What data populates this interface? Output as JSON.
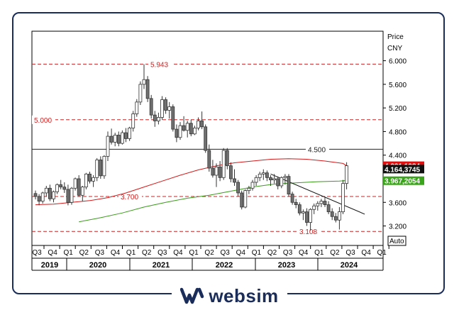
{
  "chart_data": {
    "type": "candlestick",
    "axis": {
      "title_line1": "Price",
      "title_line2": "CNY",
      "ticks": [
        "6.000",
        "5.600",
        "5.200",
        "4.800",
        "4.400",
        "4.000",
        "3.600",
        "3.200"
      ],
      "tick_values": [
        6.0,
        5.6,
        5.2,
        4.8,
        4.4,
        4.0,
        3.6,
        3.2
      ],
      "ylim": [
        2.87,
        6.5
      ],
      "scale_mode_label": "Auto"
    },
    "x_quarters": [
      "Q3",
      "Q4",
      "Q1",
      "Q2",
      "Q3",
      "Q4",
      "Q1",
      "Q2",
      "Q3",
      "Q4",
      "Q1",
      "Q2",
      "Q3",
      "Q4",
      "Q1",
      "Q2",
      "Q3",
      "Q4",
      "Q1",
      "Q2",
      "Q3",
      "Q4",
      "Q1"
    ],
    "x_years": [
      "2019",
      "2020",
      "2021",
      "2022",
      "2023",
      "2024"
    ],
    "levels": [
      {
        "value": 5.943,
        "label": "5.943",
        "style": "dashed",
        "color": "#d42020"
      },
      {
        "value": 5.0,
        "label": "5.000",
        "style": "dashed",
        "color": "#d42020"
      },
      {
        "value": 4.5,
        "label": "4.500",
        "style": "solid",
        "color": "#222222"
      },
      {
        "value": 3.7,
        "label": "3.700",
        "style": "dashed",
        "color": "#d42020"
      },
      {
        "value": 3.108,
        "label": "3.108",
        "style": "dashed",
        "color": "#d42020"
      }
    ],
    "value_tags": [
      {
        "label": "4.221,1984",
        "value": 4.221,
        "bg": "#e01010",
        "fg": "#ffffff"
      },
      {
        "label": "4.164,3745",
        "value": 4.164,
        "bg": "#111111",
        "fg": "#ffffff"
      },
      {
        "label": "3.967,2054",
        "value": 3.967,
        "bg": "#3aa51a",
        "fg": "#ffffff"
      }
    ],
    "candles": [
      [
        3.75,
        3.8,
        3.65,
        3.7
      ],
      [
        3.7,
        3.74,
        3.55,
        3.62
      ],
      [
        3.62,
        3.78,
        3.58,
        3.76
      ],
      [
        3.76,
        3.88,
        3.7,
        3.84
      ],
      [
        3.84,
        3.9,
        3.62,
        3.66
      ],
      [
        3.66,
        3.8,
        3.6,
        3.78
      ],
      [
        3.78,
        3.92,
        3.74,
        3.9
      ],
      [
        3.9,
        3.98,
        3.82,
        3.86
      ],
      [
        3.86,
        3.94,
        3.76,
        3.82
      ],
      [
        3.82,
        3.9,
        3.55,
        3.6
      ],
      [
        3.6,
        3.86,
        3.56,
        3.84
      ],
      [
        3.84,
        4.02,
        3.8,
        4.0
      ],
      [
        4.0,
        4.06,
        3.7,
        3.72
      ],
      [
        3.72,
        3.88,
        3.62,
        3.86
      ],
      [
        3.86,
        4.1,
        3.82,
        4.08
      ],
      [
        4.08,
        4.12,
        3.92,
        3.96
      ],
      [
        3.96,
        4.06,
        3.86,
        4.02
      ],
      [
        4.02,
        4.35,
        3.96,
        4.32
      ],
      [
        4.32,
        4.38,
        4.0,
        4.05
      ],
      [
        4.05,
        4.4,
        4.0,
        4.38
      ],
      [
        4.38,
        4.8,
        4.3,
        4.72
      ],
      [
        4.72,
        4.85,
        4.58,
        4.62
      ],
      [
        4.62,
        4.78,
        4.55,
        4.74
      ],
      [
        4.74,
        4.8,
        4.55,
        4.6
      ],
      [
        4.6,
        4.82,
        4.58,
        4.78
      ],
      [
        4.78,
        4.86,
        4.62,
        4.68
      ],
      [
        4.68,
        4.88,
        4.64,
        4.86
      ],
      [
        4.86,
        5.15,
        4.8,
        5.1
      ],
      [
        5.1,
        5.35,
        5.05,
        5.3
      ],
      [
        5.3,
        5.65,
        5.25,
        5.6
      ],
      [
        5.6,
        5.94,
        5.52,
        5.68
      ],
      [
        5.68,
        5.74,
        5.3,
        5.36
      ],
      [
        5.36,
        5.42,
        5.02,
        5.08
      ],
      [
        5.08,
        5.15,
        4.88,
        4.98
      ],
      [
        4.98,
        5.12,
        4.92,
        5.04
      ],
      [
        5.04,
        5.4,
        5.0,
        5.34
      ],
      [
        5.34,
        5.38,
        5.1,
        5.16
      ],
      [
        5.16,
        5.3,
        5.02,
        5.22
      ],
      [
        5.22,
        5.26,
        4.8,
        4.84
      ],
      [
        4.84,
        4.92,
        4.62,
        4.7
      ],
      [
        4.7,
        4.96,
        4.66,
        4.9
      ],
      [
        4.9,
        5.06,
        4.8,
        4.82
      ],
      [
        4.82,
        4.98,
        4.7,
        4.94
      ],
      [
        4.94,
        5.0,
        4.72,
        4.76
      ],
      [
        4.76,
        4.9,
        4.74,
        4.86
      ],
      [
        4.86,
        5.04,
        4.82,
        4.98
      ],
      [
        4.98,
        5.14,
        4.84,
        4.88
      ],
      [
        4.88,
        4.92,
        4.44,
        4.48
      ],
      [
        4.48,
        4.58,
        4.12,
        4.18
      ],
      [
        4.18,
        4.32,
        4.02,
        4.06
      ],
      [
        4.06,
        4.26,
        3.86,
        4.2
      ],
      [
        4.2,
        4.3,
        3.96,
        4.02
      ],
      [
        4.02,
        4.52,
        3.98,
        4.48
      ],
      [
        4.48,
        4.52,
        4.16,
        4.22
      ],
      [
        4.22,
        4.28,
        3.94,
        4.0
      ],
      [
        4.0,
        4.16,
        3.88,
        3.94
      ],
      [
        3.94,
        3.98,
        3.7,
        3.76
      ],
      [
        3.76,
        3.8,
        3.48,
        3.52
      ],
      [
        3.52,
        3.82,
        3.5,
        3.8
      ],
      [
        3.8,
        3.88,
        3.74,
        3.84
      ],
      [
        3.84,
        3.98,
        3.8,
        3.94
      ],
      [
        3.94,
        4.06,
        3.88,
        4.02
      ],
      [
        4.02,
        4.12,
        3.96,
        4.08
      ],
      [
        4.08,
        4.16,
        3.98,
        4.1
      ],
      [
        4.1,
        4.14,
        3.96,
        4.02
      ],
      [
        4.02,
        4.06,
        3.88,
        3.98
      ],
      [
        3.98,
        4.08,
        3.92,
        4.0
      ],
      [
        4.0,
        4.04,
        3.82,
        3.88
      ],
      [
        3.88,
        4.04,
        3.84,
        4.02
      ],
      [
        4.02,
        4.08,
        3.9,
        4.04
      ],
      [
        4.04,
        4.08,
        3.7,
        3.74
      ],
      [
        3.74,
        3.78,
        3.56,
        3.6
      ],
      [
        3.6,
        3.66,
        3.5,
        3.56
      ],
      [
        3.56,
        3.6,
        3.38,
        3.42
      ],
      [
        3.42,
        3.48,
        3.3,
        3.44
      ],
      [
        3.44,
        3.5,
        3.2,
        3.26
      ],
      [
        3.26,
        3.5,
        3.12,
        3.48
      ],
      [
        3.48,
        3.58,
        3.4,
        3.54
      ],
      [
        3.54,
        3.62,
        3.46,
        3.58
      ],
      [
        3.58,
        3.66,
        3.52,
        3.62
      ],
      [
        3.62,
        3.7,
        3.52,
        3.56
      ],
      [
        3.56,
        3.62,
        3.4,
        3.44
      ],
      [
        3.44,
        3.5,
        3.3,
        3.36
      ],
      [
        3.36,
        3.42,
        3.26,
        3.3
      ],
      [
        3.3,
        3.52,
        3.14,
        3.44
      ],
      [
        3.44,
        3.98,
        3.4,
        3.92
      ],
      [
        3.92,
        4.28,
        3.82,
        4.22
      ]
    ],
    "sma_red": [
      [
        0,
        3.56
      ],
      [
        5,
        3.57
      ],
      [
        10,
        3.6
      ],
      [
        15,
        3.63
      ],
      [
        20,
        3.68
      ],
      [
        25,
        3.76
      ],
      [
        30,
        3.86
      ],
      [
        35,
        3.96
      ],
      [
        40,
        4.06
      ],
      [
        45,
        4.15
      ],
      [
        50,
        4.22
      ],
      [
        55,
        4.27
      ],
      [
        60,
        4.3
      ],
      [
        65,
        4.33
      ],
      [
        70,
        4.34
      ],
      [
        75,
        4.33
      ],
      [
        80,
        4.3
      ],
      [
        85,
        4.26
      ],
      [
        86,
        4.22
      ]
    ],
    "sma_green": [
      [
        12,
        3.27
      ],
      [
        18,
        3.34
      ],
      [
        24,
        3.42
      ],
      [
        30,
        3.52
      ],
      [
        36,
        3.6
      ],
      [
        42,
        3.67
      ],
      [
        48,
        3.72
      ],
      [
        54,
        3.79
      ],
      [
        60,
        3.86
      ],
      [
        66,
        3.91
      ],
      [
        72,
        3.93
      ],
      [
        78,
        3.95
      ],
      [
        84,
        3.96
      ],
      [
        86,
        3.97
      ]
    ],
    "trendline": [
      [
        65,
        4.08
      ],
      [
        91,
        3.4
      ]
    ]
  },
  "brand": {
    "name": "websim"
  }
}
